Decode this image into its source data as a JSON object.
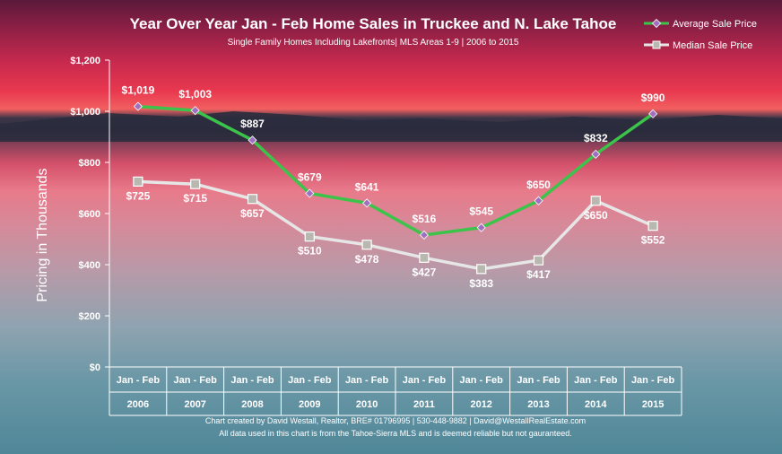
{
  "chart_data": {
    "type": "line",
    "title": "Year Over Year Jan - Feb Home Sales in Truckee and N. Lake Tahoe",
    "subtitle": "Single Family Homes Including Lakefronts| MLS Areas 1-9 | 2006 to 2015",
    "ylabel": "Pricing in Thousands",
    "ylim": [
      0,
      1200
    ],
    "yticks": [
      "$0",
      "$200",
      "$400",
      "$600",
      "$800",
      "$1,000",
      "$1,200"
    ],
    "categories": [
      "2006",
      "2007",
      "2008",
      "2009",
      "2010",
      "2011",
      "2012",
      "2013",
      "2014",
      "2015"
    ],
    "category_group_label": "Jan - Feb",
    "series": [
      {
        "name": "Average Sale Price",
        "color": "#3cc44a",
        "marker": "diamond",
        "values": [
          1019,
          1003,
          887,
          679,
          641,
          516,
          545,
          650,
          832,
          990
        ],
        "labels": [
          "$1,019",
          "$1,003",
          "$887",
          "$679",
          "$641",
          "$516",
          "$545",
          "$650",
          "$832",
          "$990"
        ]
      },
      {
        "name": "Median Sale Price",
        "color": "#e6e6e6",
        "marker": "square",
        "values": [
          725,
          715,
          657,
          510,
          478,
          427,
          383,
          417,
          650,
          552
        ],
        "labels": [
          "$725",
          "$715",
          "$657",
          "$510",
          "$478",
          "$427",
          "$383",
          "$417",
          "$650",
          "$552"
        ]
      }
    ],
    "legend_position": "top-right",
    "grid": false
  },
  "footer": {
    "line1": "Chart created by David Westall, Realtor, BRE# 01796995 | 530-448-9882 | David@WestallRealEstate.com",
    "line2": "All data used in this chart is from the Tahoe-Sierra MLS and is deemed reliable but  not gauranteed."
  }
}
